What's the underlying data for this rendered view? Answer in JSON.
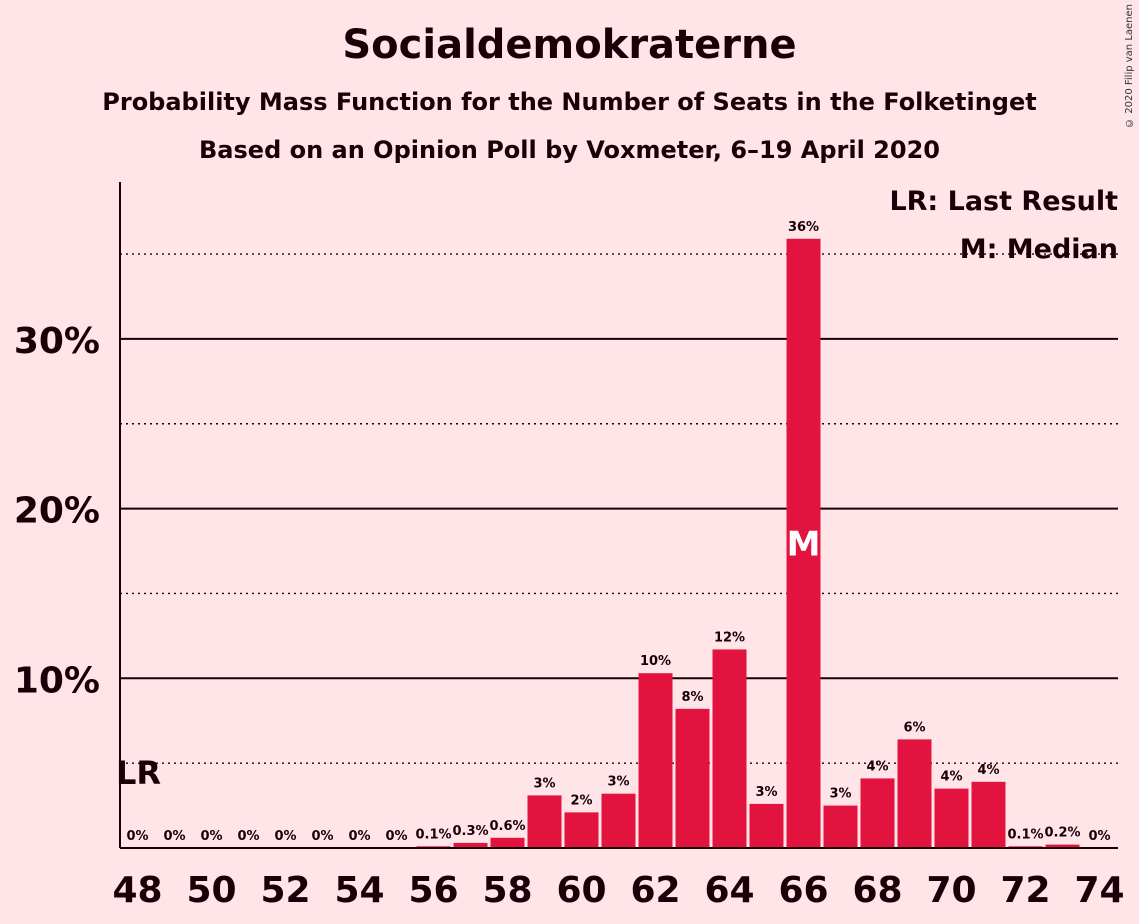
{
  "title": "Socialdemokraterne",
  "subtitle": "Probability Mass Function for the Number of Seats in the Folketinget",
  "subtitle2": "Based on an Opinion Poll by Voxmeter, 6–19 April 2020",
  "copyright": "© 2020 Filip van Laenen",
  "legend": {
    "lr": "LR: Last Result",
    "m": "M: Median"
  },
  "colors": {
    "bar": "#e3133f",
    "background": "#ffe4e8",
    "text": "#1a0008"
  },
  "chart_data": {
    "type": "bar",
    "title": "Socialdemokraterne",
    "xlabel": "",
    "ylabel": "",
    "ylim": [
      0,
      39
    ],
    "y_ticks": [
      10,
      20,
      30
    ],
    "y_tick_labels": [
      "10%",
      "20%",
      "30%"
    ],
    "y_minor_ticks": [
      5,
      15,
      25,
      35
    ],
    "x_tick_labels": [
      "48",
      "50",
      "52",
      "54",
      "56",
      "58",
      "60",
      "62",
      "64",
      "66",
      "68",
      "70",
      "72",
      "74"
    ],
    "categories": [
      48,
      49,
      50,
      51,
      52,
      53,
      54,
      55,
      56,
      57,
      58,
      59,
      60,
      61,
      62,
      63,
      64,
      65,
      66,
      67,
      68,
      69,
      70,
      71,
      72,
      73,
      74
    ],
    "values": [
      0,
      0,
      0,
      0,
      0,
      0,
      0,
      0,
      0.1,
      0.3,
      0.6,
      3.1,
      2.1,
      3.2,
      10.3,
      8.2,
      11.7,
      2.6,
      35.9,
      2.5,
      4.1,
      6.4,
      3.5,
      3.9,
      0.1,
      0.2,
      0
    ],
    "data_labels": [
      "0%",
      "0%",
      "0%",
      "0%",
      "0%",
      "0%",
      "0%",
      "0%",
      "0.1%",
      "0.3%",
      "0.6%",
      "3%",
      "2%",
      "3%",
      "10%",
      "8%",
      "12%",
      "3%",
      "36%",
      "3%",
      "4%",
      "6%",
      "4%",
      "4%",
      "0.1%",
      "0.2%",
      "0%"
    ],
    "last_result": 48,
    "last_result_label": "LR",
    "median": 66,
    "median_label": "M",
    "grid": true,
    "legend_position": "top-right"
  }
}
